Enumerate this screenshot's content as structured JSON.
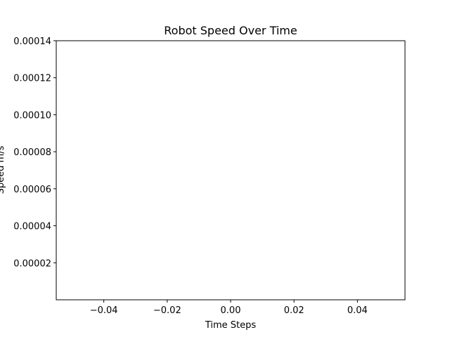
{
  "chart_data": {
    "type": "line",
    "title": "Robot Speed Over Time",
    "xlabel": "Time Steps",
    "ylabel": "Speed m/s",
    "xlim": [
      -0.055,
      0.055
    ],
    "ylim": [
      0.0,
      0.00014
    ],
    "x_ticks": [
      -0.04,
      -0.02,
      0.0,
      0.02,
      0.04
    ],
    "x_tick_labels": [
      "−0.04",
      "−0.02",
      "0.00",
      "0.02",
      "0.04"
    ],
    "y_ticks": [
      2e-05,
      4e-05,
      6e-05,
      8e-05,
      0.0001,
      0.00012,
      0.00014
    ],
    "y_tick_labels": [
      "0.00002",
      "0.00004",
      "0.00006",
      "0.00008",
      "0.00010",
      "0.00012",
      "0.00014"
    ],
    "grid": false,
    "series": []
  }
}
